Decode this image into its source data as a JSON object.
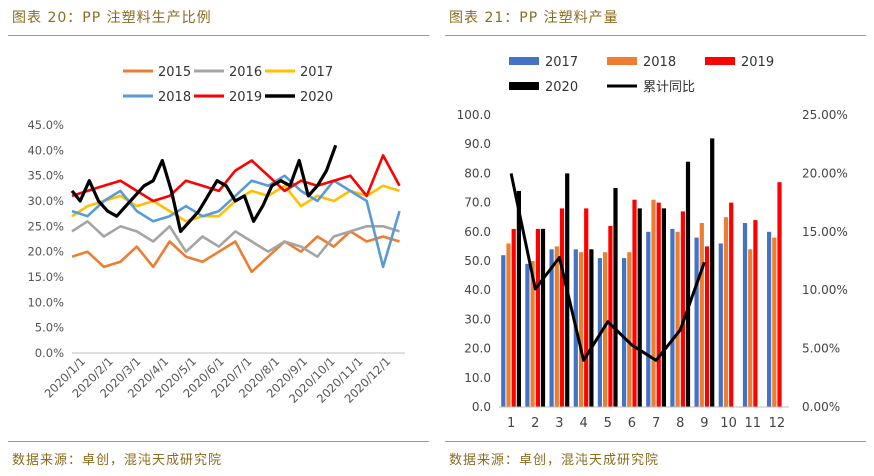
{
  "left": {
    "title": "图表 20：PP 注塑料生产比例",
    "source": "数据来源：卓创，混沌天成研究院"
  },
  "right": {
    "title": "图表 21：PP 注塑料产量",
    "source": "数据来源：卓创，混沌天成研究院"
  },
  "colors": {
    "title": "#8c6b1f",
    "rule": "#b89a4a"
  },
  "chart_data": [
    {
      "type": "line",
      "title": "",
      "xlabel": "",
      "ylabel": "",
      "ylim": [
        0,
        45
      ],
      "y_tick_labels": [
        "0.0%",
        "5.0%",
        "10.0%",
        "15.0%",
        "20.0%",
        "25.0%",
        "30.0%",
        "35.0%",
        "40.0%",
        "45.0%"
      ],
      "x_tick_labels": [
        "2020/1/1",
        "2020/2/1",
        "2020/3/1",
        "2020/4/1",
        "2020/5/1",
        "2020/6/1",
        "2020/7/1",
        "2020/8/1",
        "2020/9/1",
        "2020/10/1",
        "2020/11/1",
        "2020/12/1"
      ],
      "grid": false,
      "legend": "top",
      "x_unit": "day of year (1 = 2020/1/1, 366 = 2020/12/31)",
      "series": [
        {
          "name": "2015",
          "color": "#ed7d31",
          "x": [
            1,
            18,
            36,
            54,
            72,
            90,
            108,
            126,
            144,
            162,
            180,
            198,
            216,
            234,
            252,
            270,
            288,
            306,
            324,
            342,
            360
          ],
          "y": [
            19,
            20,
            17,
            18,
            21,
            17,
            22,
            19,
            18,
            20,
            22,
            16,
            19,
            22,
            20,
            23,
            21,
            24,
            22,
            23,
            22
          ]
        },
        {
          "name": "2016",
          "color": "#a5a5a5",
          "x": [
            1,
            18,
            36,
            54,
            72,
            90,
            108,
            126,
            144,
            162,
            180,
            198,
            216,
            234,
            252,
            270,
            288,
            306,
            324,
            342,
            360
          ],
          "y": [
            24,
            26,
            23,
            25,
            24,
            22,
            25,
            20,
            23,
            21,
            24,
            22,
            20,
            22,
            21,
            19,
            23,
            24,
            25,
            25,
            24
          ]
        },
        {
          "name": "2017",
          "color": "#ffc000",
          "x": [
            1,
            18,
            36,
            54,
            72,
            90,
            108,
            126,
            144,
            162,
            180,
            198,
            216,
            234,
            252,
            270,
            288,
            306,
            324,
            342,
            360
          ],
          "y": [
            27,
            29,
            30,
            31,
            29,
            30,
            28,
            26,
            27,
            27,
            30,
            32,
            31,
            33,
            29,
            31,
            30,
            32,
            31,
            33,
            32
          ]
        },
        {
          "name": "2018",
          "color": "#5b9bd5",
          "x": [
            1,
            18,
            36,
            54,
            72,
            90,
            108,
            126,
            144,
            162,
            180,
            198,
            216,
            234,
            252,
            270,
            288,
            306,
            324,
            342,
            360
          ],
          "y": [
            28,
            27,
            30,
            32,
            28,
            26,
            27,
            29,
            27,
            28,
            31,
            34,
            33,
            35,
            32,
            30,
            34,
            32,
            30,
            17,
            28
          ]
        },
        {
          "name": "2019",
          "color": "#ff0000",
          "x": [
            1,
            18,
            36,
            54,
            72,
            90,
            108,
            126,
            144,
            162,
            180,
            198,
            216,
            234,
            252,
            270,
            288,
            306,
            324,
            342,
            360
          ],
          "y": [
            31,
            32,
            33,
            34,
            32,
            30,
            31,
            34,
            33,
            32,
            36,
            38,
            35,
            32,
            34,
            33,
            34,
            35,
            31,
            39,
            33
          ]
        },
        {
          "name": "2020",
          "color": "#000000",
          "x": [
            1,
            10,
            20,
            30,
            40,
            50,
            60,
            70,
            80,
            90,
            100,
            110,
            120,
            130,
            140,
            150,
            160,
            170,
            180,
            190,
            200,
            210,
            220,
            230,
            240,
            250,
            260,
            270,
            280,
            290
          ],
          "y": [
            32,
            30,
            34,
            30,
            28,
            27,
            29,
            31,
            33,
            34,
            38,
            32,
            24,
            26,
            28,
            31,
            34,
            33,
            30,
            31,
            26,
            29,
            33,
            34,
            33,
            38,
            31,
            33,
            36,
            41
          ]
        }
      ]
    },
    {
      "type": "bar",
      "title": "",
      "xlabel": "",
      "ylabel": "",
      "categories": [
        "1",
        "2",
        "3",
        "4",
        "5",
        "6",
        "7",
        "8",
        "9",
        "10",
        "11",
        "12"
      ],
      "ylim": [
        0,
        100
      ],
      "y2lim": [
        0,
        0.25
      ],
      "y_tick_labels": [
        "0.0",
        "10.0",
        "20.0",
        "30.0",
        "40.0",
        "50.0",
        "60.0",
        "70.0",
        "80.0",
        "90.0",
        "100.0"
      ],
      "y2_tick_labels": [
        "0.00%",
        "5.00%",
        "10.00%",
        "15.00%",
        "20.00%",
        "25.00%"
      ],
      "grid": false,
      "legend": "top",
      "series": [
        {
          "name": "2017",
          "color": "#4472c4",
          "values": [
            52,
            49,
            54,
            54,
            51,
            51,
            60,
            61,
            58,
            56,
            63,
            60
          ]
        },
        {
          "name": "2018",
          "color": "#ed7d31",
          "values": [
            56,
            50,
            55,
            53,
            53,
            53,
            71,
            60,
            63,
            65,
            54,
            58
          ]
        },
        {
          "name": "2019",
          "color": "#ff0000",
          "values": [
            61,
            61,
            68,
            68,
            62,
            71,
            70,
            67,
            55,
            70,
            64,
            77
          ]
        },
        {
          "name": "2020",
          "color": "#000000",
          "values": [
            74,
            61,
            80,
            54,
            75,
            68,
            68,
            84,
            92,
            null,
            null,
            null
          ]
        },
        {
          "name": "累计同比",
          "color": "#000000",
          "type": "line",
          "axis": "right",
          "values": [
            0.2,
            0.101,
            0.128,
            0.04,
            0.073,
            0.053,
            0.04,
            0.066,
            0.124,
            null,
            null,
            null
          ]
        }
      ]
    }
  ]
}
